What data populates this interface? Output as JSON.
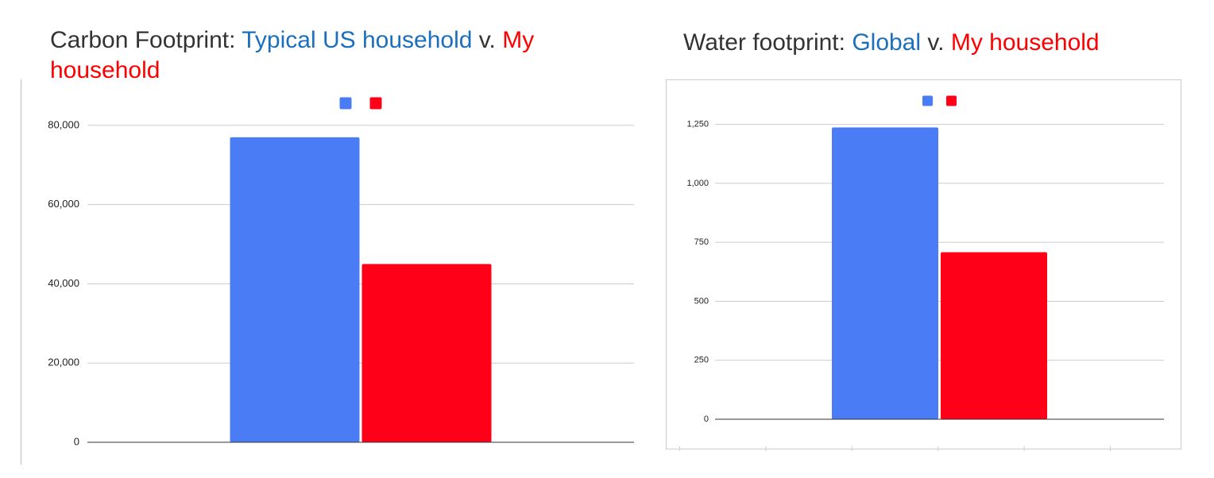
{
  "chart_data": [
    {
      "type": "bar",
      "title": [
        {
          "text": "Carbon Footprint:",
          "color": "#333333"
        },
        {
          "text": "Typical US household",
          "color": "#1b6fbd"
        },
        {
          "text": "v.",
          "color": "#333333"
        },
        {
          "text": "My household",
          "color": "#ff0000"
        }
      ],
      "categories": [
        null
      ],
      "series": [
        {
          "color": "#4a7df5",
          "values": [
            77000
          ]
        },
        {
          "color": "#ff0019",
          "values": [
            45000
          ]
        }
      ],
      "ylim": [
        0,
        89000
      ],
      "yticks": [
        0,
        {
          "value": 20000,
          "label": "20,000"
        },
        {
          "value": 40000,
          "label": "40,000"
        },
        {
          "value": 60000,
          "label": "60,000"
        },
        {
          "value": 80000,
          "label": "80,000"
        }
      ],
      "grid": true
    },
    {
      "type": "bar",
      "title": [
        {
          "text": "Water footprint:",
          "color": "#333333"
        },
        {
          "text": "Global",
          "color": "#1b6fbd"
        },
        {
          "text": "v.",
          "color": "#333333"
        },
        {
          "text": "My household",
          "color": "#ff0000"
        }
      ],
      "categories": [
        null
      ],
      "series": [
        {
          "color": "#4a7df5",
          "values": [
            1237
          ]
        },
        {
          "color": "#ff0019",
          "values": [
            708
          ]
        }
      ],
      "ylim": [
        0,
        1390
      ],
      "yticks": [
        0,
        250,
        500,
        750,
        {
          "value": 1000,
          "label": "1,000"
        },
        {
          "value": 1250,
          "label": "1,250"
        }
      ],
      "grid": true
    }
  ]
}
